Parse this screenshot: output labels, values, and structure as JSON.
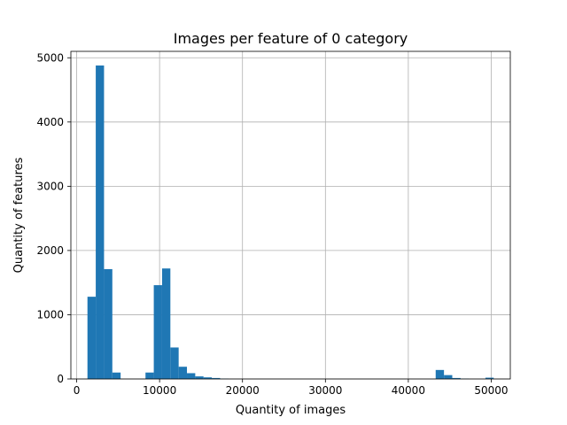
{
  "chart_data": {
    "type": "bar",
    "title": "Images per feature of 0 category",
    "xlabel": "Quantity of images",
    "ylabel": "Quantity of features",
    "xlim": [
      -700,
      52300
    ],
    "ylim": [
      0,
      5100
    ],
    "xticks": [
      {
        "value": 0,
        "label": "0"
      },
      {
        "value": 10000,
        "label": "10000"
      },
      {
        "value": 20000,
        "label": "20000"
      },
      {
        "value": 30000,
        "label": "30000"
      },
      {
        "value": 40000,
        "label": "40000"
      },
      {
        "value": 50000,
        "label": "50000"
      }
    ],
    "yticks": [
      {
        "value": 0,
        "label": "0"
      },
      {
        "value": 1000,
        "label": "1000"
      },
      {
        "value": 2000,
        "label": "2000"
      },
      {
        "value": 3000,
        "label": "3000"
      },
      {
        "value": 4000,
        "label": "4000"
      },
      {
        "value": 5000,
        "label": "5000"
      }
    ],
    "grid": true,
    "bar_color": "#1f77b4",
    "bin_edges": [
      1300,
      2300,
      3300,
      4300,
      5300,
      6300,
      7300,
      8300,
      9300,
      10300,
      11300,
      12300,
      13300,
      14300,
      15300,
      16300,
      17300,
      18300,
      19300,
      20300,
      21300,
      22300,
      23300,
      24300,
      25300,
      26300,
      27300,
      28300,
      29300,
      30300,
      31300,
      32300,
      33300,
      34300,
      35300,
      36300,
      37300,
      38300,
      39300,
      40300,
      41300,
      42300,
      43300,
      44300,
      45300,
      46300,
      47300,
      48300,
      49300,
      50300
    ],
    "values": [
      1280,
      4880,
      1710,
      100,
      0,
      0,
      0,
      100,
      1460,
      1720,
      490,
      190,
      90,
      40,
      25,
      15,
      5,
      0,
      0,
      0,
      0,
      0,
      0,
      0,
      0,
      0,
      0,
      0,
      0,
      0,
      0,
      0,
      0,
      0,
      0,
      0,
      0,
      0,
      0,
      0,
      0,
      0,
      140,
      60,
      15,
      5,
      0,
      0,
      20
    ]
  }
}
